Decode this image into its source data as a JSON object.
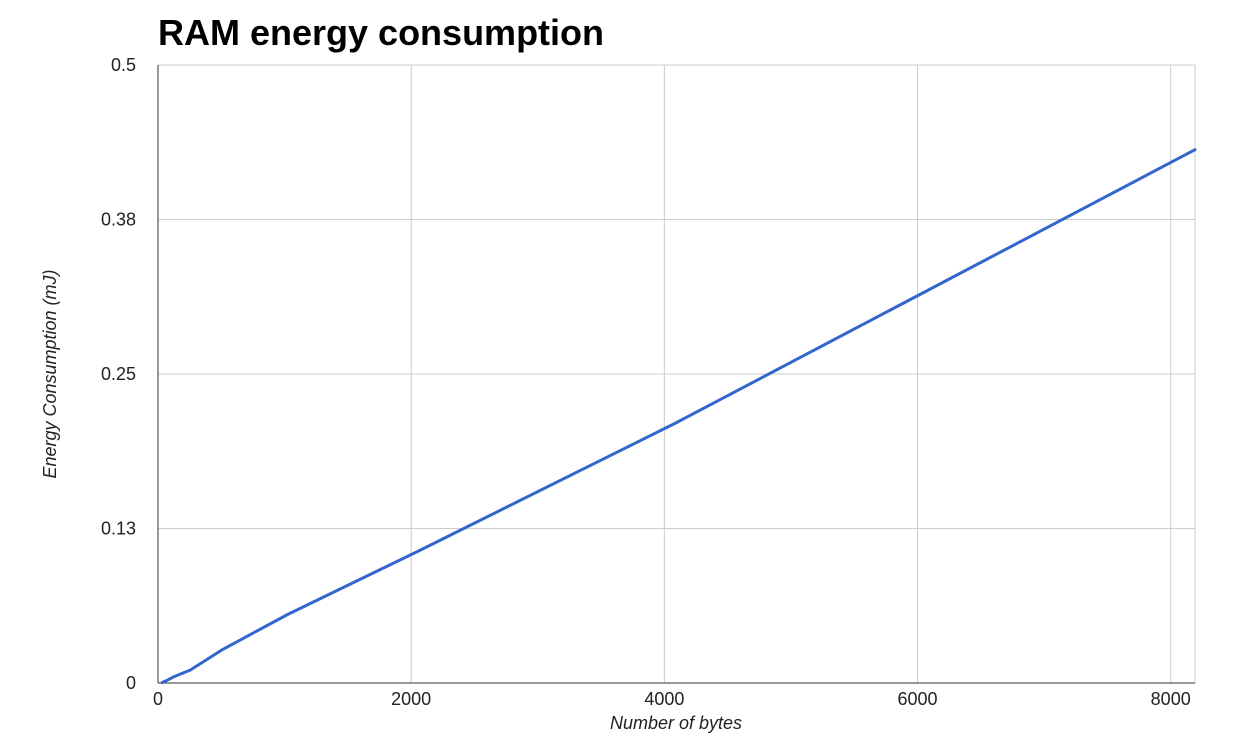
{
  "chart_data": {
    "type": "line",
    "title": "RAM energy consumption",
    "xlabel": "Number of bytes",
    "ylabel": "Energy Consumption (mJ)",
    "xlim": [
      0,
      8192
    ],
    "ylim": [
      0,
      0.5
    ],
    "x_ticks": [
      0,
      2000,
      4000,
      6000,
      8000
    ],
    "x_tick_labels": [
      "0",
      "2000",
      "4000",
      "6000",
      "8000"
    ],
    "y_ticks": [
      0,
      0.125,
      0.25,
      0.375,
      0.5
    ],
    "y_tick_labels": [
      "0",
      "0.13",
      "0.25",
      "0.38",
      "0.5"
    ],
    "grid": true,
    "legend": "none",
    "series": [
      {
        "color": "#3366cc",
        "x": [
          32,
          64,
          128,
          256,
          512,
          1024,
          2048,
          4096,
          8192
        ],
        "y": [
          0.0003,
          0.0018,
          0.0052,
          0.0105,
          0.0272,
          0.0554,
          0.1063,
          0.2107,
          0.4315
        ]
      }
    ]
  }
}
